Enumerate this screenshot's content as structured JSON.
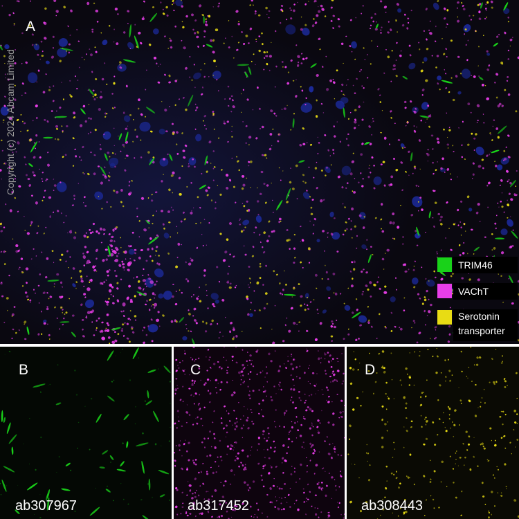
{
  "panels": [
    {
      "label": "A"
    },
    {
      "label": "B",
      "antibody": "ab307967"
    },
    {
      "label": "C",
      "antibody": "ab317452"
    },
    {
      "label": "D",
      "antibody": "ab308443"
    }
  ],
  "copyright": "Copyright (c) 2024 Abcam Limited",
  "legend": [
    {
      "label": "TRIM46",
      "color": "#19d219"
    },
    {
      "label": "VAChT",
      "color": "#e83ee8"
    },
    {
      "label": "Serotonin transporter",
      "color": "#e8dc14"
    }
  ]
}
